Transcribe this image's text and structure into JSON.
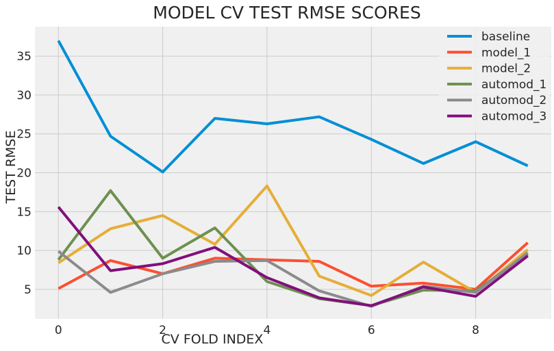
{
  "chart_data": {
    "type": "line",
    "title": "MODEL CV TEST RMSE SCORES",
    "xlabel": "CV FOLD INDEX",
    "ylabel": "TEST RMSE",
    "xlim": [
      -0.45,
      9.45
    ],
    "ylim": [
      1.2,
      38.8
    ],
    "xticks": [
      0,
      2,
      4,
      6,
      8
    ],
    "yticks": [
      5,
      10,
      15,
      20,
      25,
      30,
      35
    ],
    "grid": true,
    "legend_position": "top-right",
    "x": [
      0,
      1,
      2,
      3,
      4,
      5,
      6,
      7,
      8,
      9
    ],
    "series": [
      {
        "name": "baseline",
        "color": "#008fd5",
        "values": [
          37.0,
          24.7,
          20.1,
          27.0,
          26.3,
          27.2,
          24.3,
          21.2,
          24.0,
          20.9
        ]
      },
      {
        "name": "model_1",
        "color": "#fc4f30",
        "values": [
          5.1,
          8.7,
          7.0,
          9.0,
          8.8,
          8.6,
          5.4,
          5.8,
          5.0,
          11.0
        ]
      },
      {
        "name": "model_2",
        "color": "#e5ae38",
        "values": [
          8.4,
          12.8,
          14.5,
          10.8,
          18.3,
          6.7,
          4.2,
          8.5,
          4.6,
          10.1
        ]
      },
      {
        "name": "automod_1",
        "color": "#6d904f",
        "values": [
          8.8,
          17.7,
          9.0,
          12.9,
          6.0,
          3.8,
          2.9,
          4.9,
          4.8,
          9.5
        ]
      },
      {
        "name": "automod_2",
        "color": "#8b8b8b",
        "values": [
          9.9,
          4.6,
          7.0,
          8.6,
          8.7,
          4.8,
          2.8,
          5.4,
          4.6,
          9.7
        ]
      },
      {
        "name": "automod_3",
        "color": "#810f7c",
        "values": [
          15.6,
          7.4,
          8.3,
          10.4,
          6.5,
          3.9,
          2.9,
          5.3,
          4.1,
          9.3
        ]
      }
    ]
  }
}
